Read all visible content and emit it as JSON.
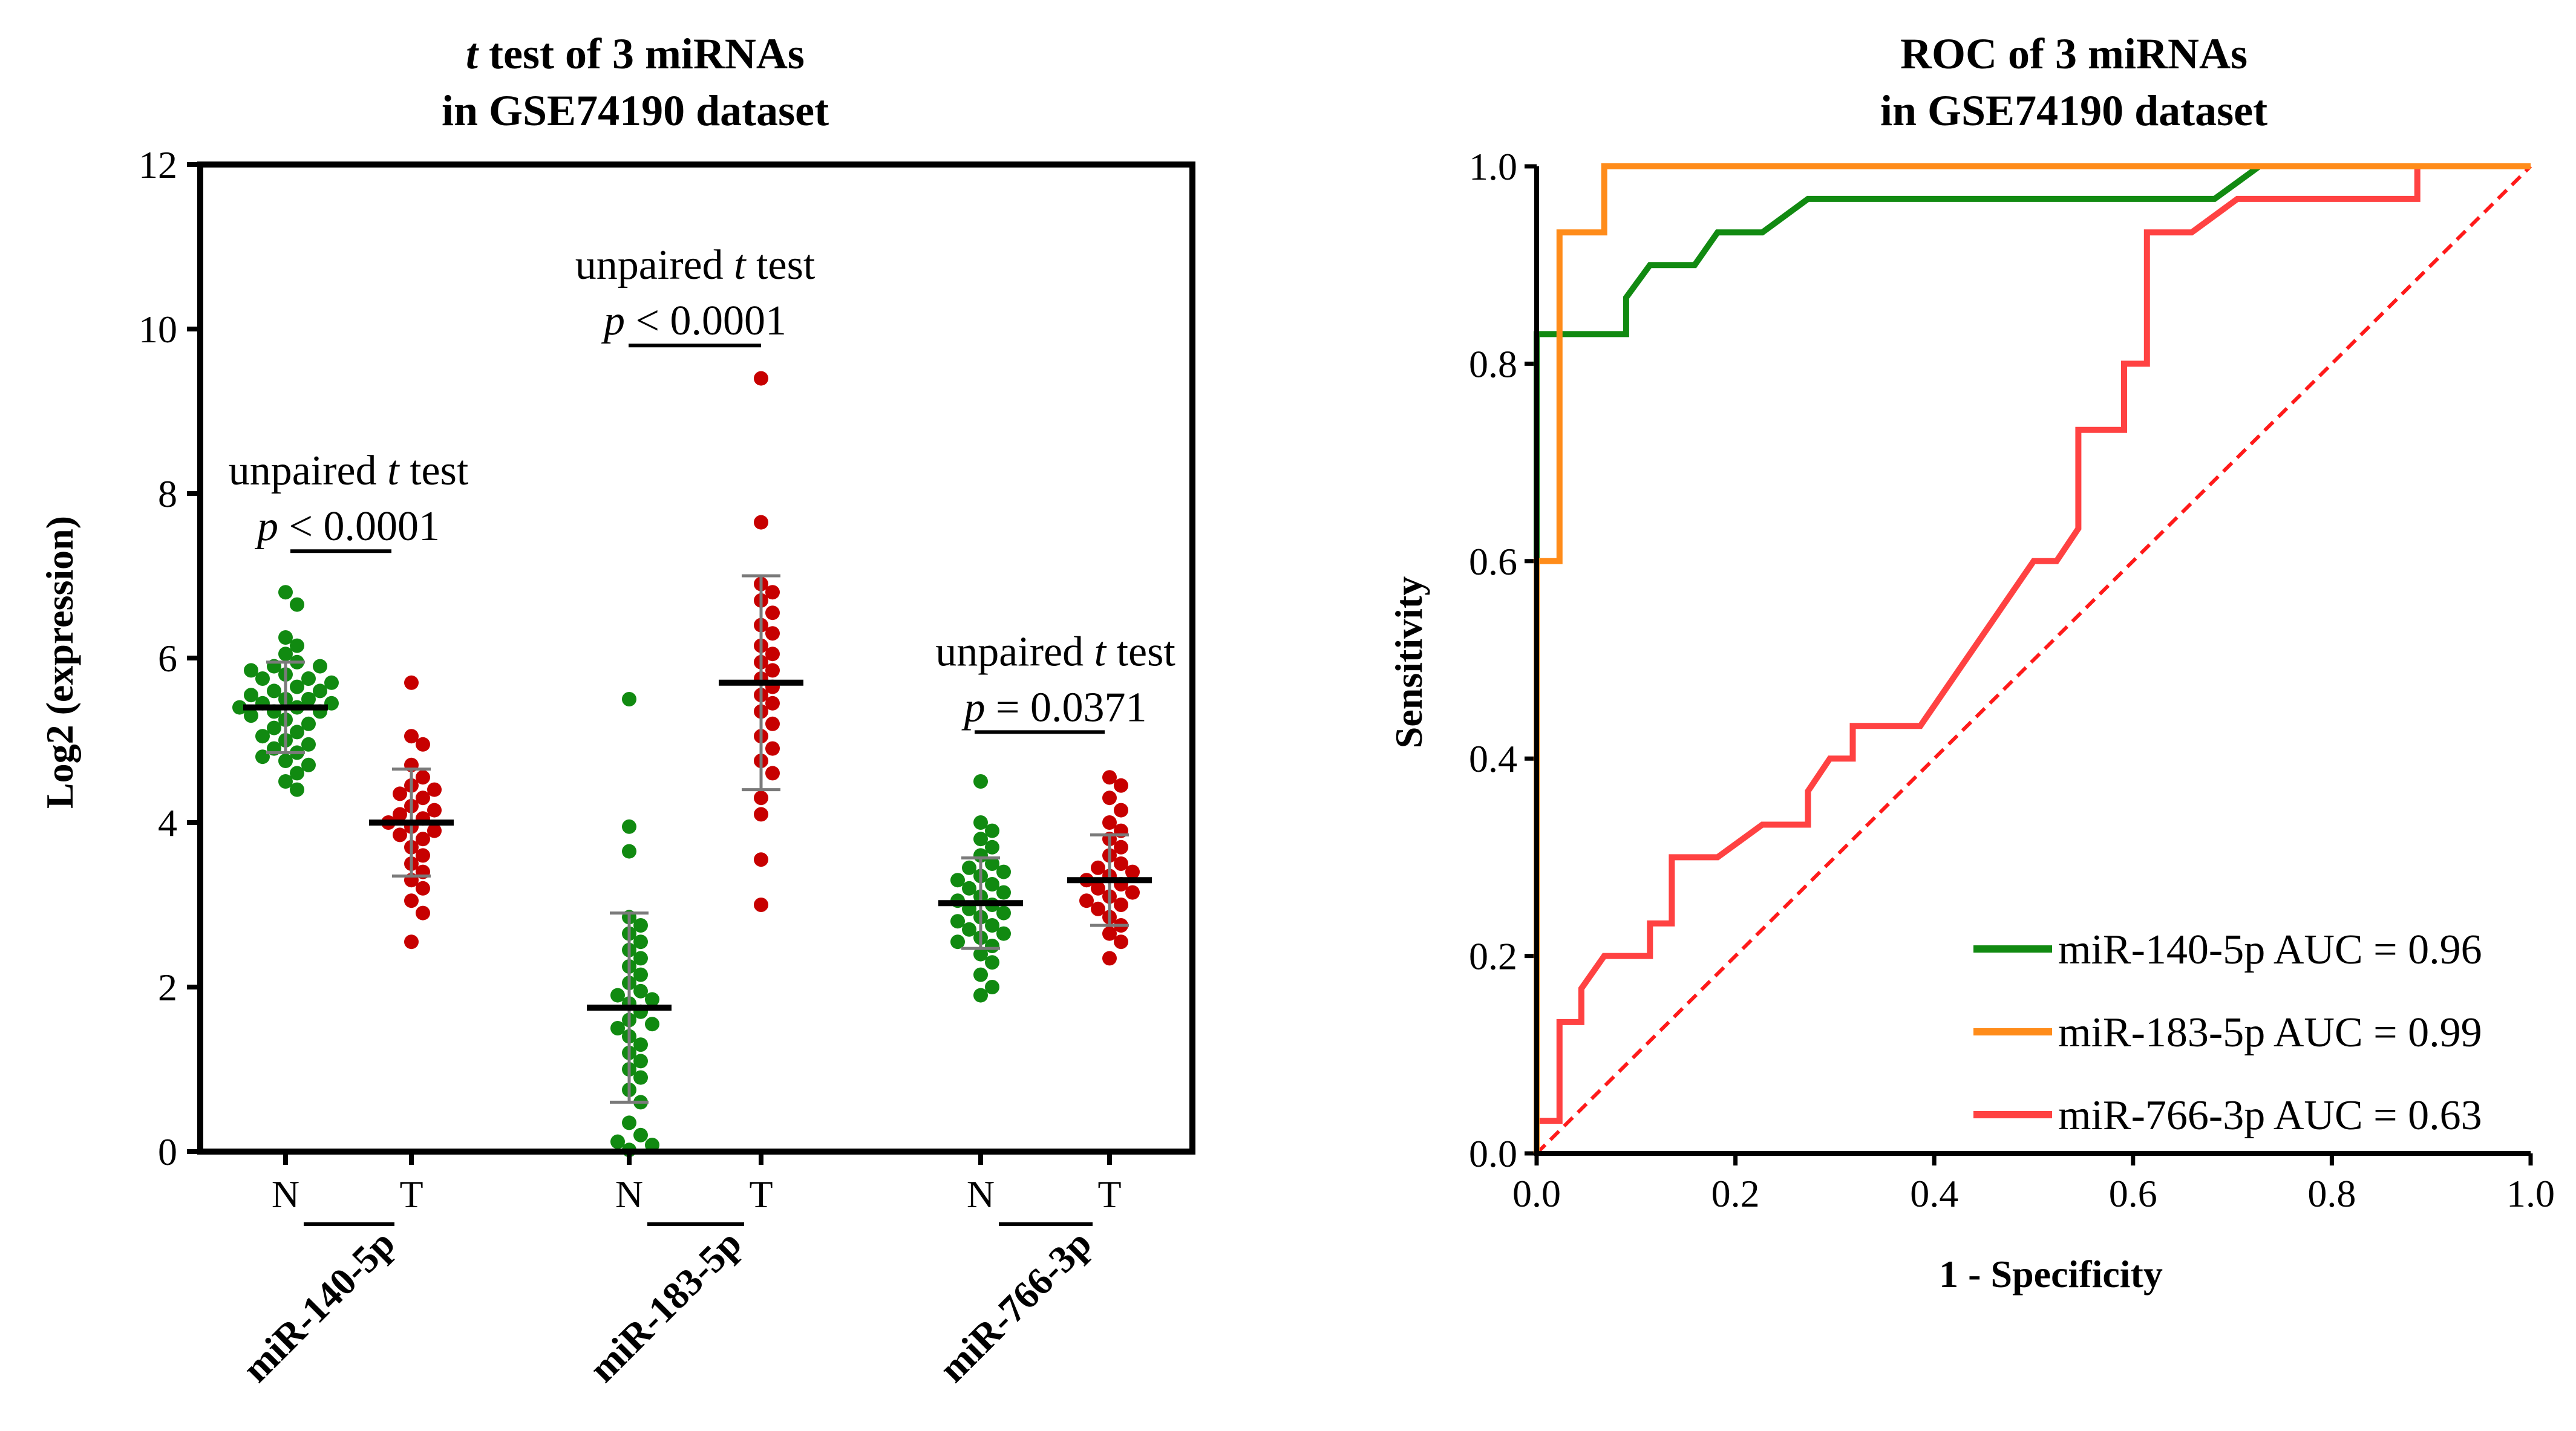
{
  "colors": {
    "normal": "#118a11",
    "tumor": "#c70000",
    "miR-140-5p": "#118a11",
    "miR-183-5p": "#ff8c1a",
    "miR-766-3p": "#ff4242",
    "diagonal": "#ff1a1a",
    "errorbar": "#7a7a7a"
  },
  "chart_data": [
    {
      "type": "scatter",
      "title_italic": "t",
      "title_rest": " test of 3 miRNAs",
      "title_line2": "in GSE74190 dataset",
      "ylabel": "Log2 (expression)",
      "ylim": [
        0,
        12
      ],
      "yticks": [
        "0",
        "2",
        "4",
        "6",
        "8",
        "10",
        "12"
      ],
      "group_labels": [
        "miR-140-5p",
        "miR-183-5p",
        "miR-766-3p"
      ],
      "groups": [
        {
          "name": "miR-140-5p",
          "comparison": {
            "test_pre": "unpaired ",
            "test_italic": "t",
            "test_post": " test",
            "p_italic": "p",
            "p_rest": " < 0.0001"
          },
          "N": {
            "label": "N",
            "mean": 5.4,
            "sd": 0.55,
            "values": [
              6.8,
              6.65,
              6.25,
              6.15,
              6.05,
              5.95,
              5.9,
              5.9,
              5.85,
              5.8,
              5.75,
              5.75,
              5.7,
              5.65,
              5.6,
              5.6,
              5.55,
              5.5,
              5.5,
              5.45,
              5.45,
              5.4,
              5.4,
              5.35,
              5.35,
              5.3,
              5.25,
              5.2,
              5.15,
              5.1,
              5.05,
              5.0,
              4.95,
              4.9,
              4.85,
              4.8,
              4.75,
              4.7,
              4.6,
              4.5,
              4.4
            ]
          },
          "T": {
            "label": "T",
            "mean": 4.0,
            "sd": 0.65,
            "values": [
              5.7,
              5.05,
              4.95,
              4.7,
              4.55,
              4.45,
              4.4,
              4.35,
              4.3,
              4.2,
              4.15,
              4.1,
              4.05,
              4.0,
              3.95,
              3.9,
              3.85,
              3.8,
              3.7,
              3.6,
              3.5,
              3.4,
              3.3,
              3.2,
              3.05,
              2.9,
              2.55
            ]
          }
        },
        {
          "name": "miR-183-5p",
          "comparison": {
            "test_pre": "unpaired ",
            "test_italic": "t",
            "test_post": " test",
            "p_italic": "p",
            "p_rest": " < 0.0001"
          },
          "N": {
            "label": "N",
            "mean": 1.75,
            "sd": 1.15,
            "values": [
              5.5,
              3.95,
              3.65,
              2.85,
              2.75,
              2.65,
              2.55,
              2.45,
              2.35,
              2.25,
              2.15,
              2.05,
              1.95,
              1.9,
              1.85,
              1.8,
              1.7,
              1.6,
              1.55,
              1.5,
              1.4,
              1.3,
              1.2,
              1.1,
              1.0,
              0.9,
              0.75,
              0.6,
              0.35,
              0.2,
              0.12,
              0.08,
              0.02
            ]
          },
          "T": {
            "label": "T",
            "mean": 5.7,
            "sd": 1.3,
            "values": [
              9.4,
              7.65,
              6.9,
              6.8,
              6.7,
              6.55,
              6.4,
              6.3,
              6.15,
              6.05,
              5.95,
              5.85,
              5.75,
              5.65,
              5.55,
              5.45,
              5.35,
              5.2,
              5.05,
              4.9,
              4.75,
              4.6,
              4.3,
              4.1,
              3.55,
              3.0
            ]
          }
        },
        {
          "name": "miR-766-3p",
          "comparison": {
            "test_pre": "unpaired ",
            "test_italic": "t",
            "test_post": " test",
            "p_italic": "p",
            "p_rest": " = 0.0371"
          },
          "N": {
            "label": "N",
            "mean": 3.02,
            "sd": 0.55,
            "values": [
              4.5,
              4.0,
              3.9,
              3.8,
              3.7,
              3.6,
              3.5,
              3.45,
              3.4,
              3.35,
              3.3,
              3.25,
              3.2,
              3.15,
              3.1,
              3.05,
              3.0,
              2.95,
              2.9,
              2.85,
              2.8,
              2.75,
              2.7,
              2.65,
              2.6,
              2.55,
              2.5,
              2.4,
              2.3,
              2.15,
              2.0,
              1.9
            ]
          },
          "T": {
            "label": "T",
            "mean": 3.3,
            "sd": 0.55,
            "values": [
              4.55,
              4.45,
              4.3,
              4.15,
              4.0,
              3.9,
              3.8,
              3.7,
              3.6,
              3.5,
              3.45,
              3.4,
              3.35,
              3.3,
              3.25,
              3.2,
              3.15,
              3.1,
              3.05,
              3.0,
              2.95,
              2.85,
              2.75,
              2.65,
              2.55,
              2.35
            ]
          }
        }
      ]
    },
    {
      "type": "line",
      "title": "ROC of 3 miRNAs",
      "title_line2": "in GSE74190 dataset",
      "xlabel": "1 - Specificity",
      "ylabel": "Sensitivity",
      "xlim": [
        0,
        1
      ],
      "ylim": [
        0,
        1
      ],
      "xticks": [
        "0.0",
        "0.2",
        "0.4",
        "0.6",
        "0.8",
        "1.0"
      ],
      "yticks": [
        "0.0",
        "0.2",
        "0.4",
        "0.6",
        "0.8",
        "1.0"
      ],
      "series": [
        {
          "name": "miR-140-5p",
          "auc_label": "miR-140-5p AUC = 0.96",
          "color_key": "miR-140-5p",
          "points": [
            [
              0,
              0
            ],
            [
              0,
              0.6
            ],
            [
              0,
              0.83
            ],
            [
              0.09,
              0.83
            ],
            [
              0.09,
              0.867
            ],
            [
              0.114,
              0.9
            ],
            [
              0.159,
              0.9
            ],
            [
              0.182,
              0.933
            ],
            [
              0.227,
              0.933
            ],
            [
              0.273,
              0.967
            ],
            [
              0.682,
              0.967
            ],
            [
              0.727,
              1.0
            ],
            [
              1.0,
              1.0
            ]
          ]
        },
        {
          "name": "miR-183-5p",
          "auc_label": "miR-183-5p AUC = 0.99",
          "color_key": "miR-183-5p",
          "points": [
            [
              0,
              0
            ],
            [
              0,
              0.6
            ],
            [
              0.023,
              0.6
            ],
            [
              0.023,
              0.933
            ],
            [
              0.068,
              0.933
            ],
            [
              0.068,
              1.0
            ],
            [
              1.0,
              1.0
            ]
          ]
        },
        {
          "name": "miR-766-3p",
          "auc_label": "miR-766-3p AUC = 0.63",
          "color_key": "miR-766-3p",
          "points": [
            [
              0,
              0
            ],
            [
              0,
              0.033
            ],
            [
              0.023,
              0.033
            ],
            [
              0.023,
              0.133
            ],
            [
              0.045,
              0.133
            ],
            [
              0.045,
              0.167
            ],
            [
              0.068,
              0.2
            ],
            [
              0.114,
              0.2
            ],
            [
              0.114,
              0.233
            ],
            [
              0.136,
              0.233
            ],
            [
              0.136,
              0.3
            ],
            [
              0.182,
              0.3
            ],
            [
              0.227,
              0.333
            ],
            [
              0.273,
              0.333
            ],
            [
              0.273,
              0.367
            ],
            [
              0.295,
              0.4
            ],
            [
              0.318,
              0.4
            ],
            [
              0.318,
              0.433
            ],
            [
              0.386,
              0.433
            ],
            [
              0.5,
              0.6
            ],
            [
              0.523,
              0.6
            ],
            [
              0.545,
              0.633
            ],
            [
              0.545,
              0.733
            ],
            [
              0.591,
              0.733
            ],
            [
              0.591,
              0.8
            ],
            [
              0.614,
              0.8
            ],
            [
              0.614,
              0.933
            ],
            [
              0.659,
              0.933
            ],
            [
              0.705,
              0.967
            ],
            [
              0.886,
              0.967
            ],
            [
              0.886,
              1.0
            ],
            [
              1.0,
              1.0
            ]
          ]
        }
      ],
      "legend_position": "bottom-right"
    }
  ]
}
